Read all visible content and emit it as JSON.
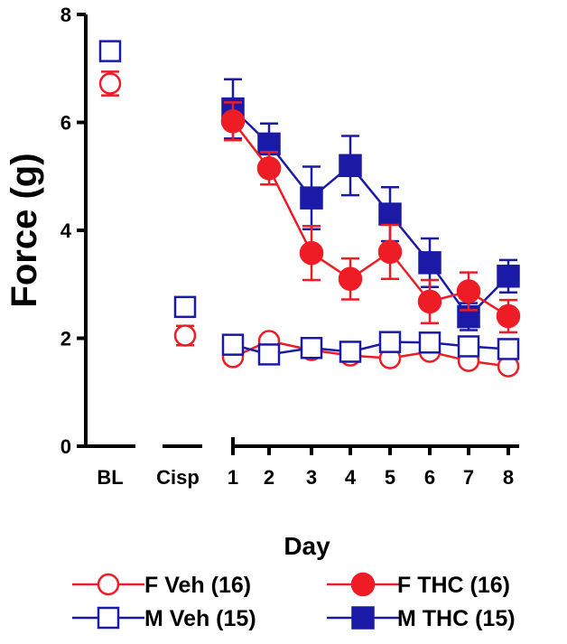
{
  "chart_data": {
    "type": "scatter",
    "ylabel": "Force (g)",
    "xlabel": "Day",
    "ylim": [
      0,
      8
    ],
    "yticks": [
      0,
      2,
      4,
      6,
      8
    ],
    "x_categories": [
      "BL",
      "Cisp",
      "1",
      "2",
      "3",
      "4",
      "5",
      "6",
      "7",
      "8"
    ],
    "colors": {
      "female": "#ee1c25",
      "male": "#1a1aa6"
    },
    "series": [
      {
        "name": "F Veh (16)",
        "color": "#ee1c25",
        "marker": "circle-open",
        "points": [
          {
            "x": "BL",
            "y": 6.72,
            "err": 0.22
          },
          {
            "x": "Cisp",
            "y": 2.05,
            "err": 0.18
          },
          {
            "x": "1",
            "y": 1.65,
            "err": 0.08
          },
          {
            "x": "2",
            "y": 1.95,
            "err": 0.08
          },
          {
            "x": "3",
            "y": 1.78,
            "err": 0.08
          },
          {
            "x": "4",
            "y": 1.68,
            "err": 0.08
          },
          {
            "x": "5",
            "y": 1.63,
            "err": 0.08
          },
          {
            "x": "6",
            "y": 1.75,
            "err": 0.08
          },
          {
            "x": "7",
            "y": 1.58,
            "err": 0.08
          },
          {
            "x": "8",
            "y": 1.48,
            "err": 0.08
          }
        ]
      },
      {
        "name": "F THC (16)",
        "color": "#ee1c25",
        "marker": "circle-filled",
        "points": [
          {
            "x": "1",
            "y": 6.02,
            "err": 0.35
          },
          {
            "x": "2",
            "y": 5.15,
            "err": 0.3
          },
          {
            "x": "3",
            "y": 3.58,
            "err": 0.5
          },
          {
            "x": "4",
            "y": 3.1,
            "err": 0.38
          },
          {
            "x": "5",
            "y": 3.6,
            "err": 0.5
          },
          {
            "x": "6",
            "y": 2.68,
            "err": 0.4
          },
          {
            "x": "7",
            "y": 2.87,
            "err": 0.35
          },
          {
            "x": "8",
            "y": 2.41,
            "err": 0.3
          }
        ]
      },
      {
        "name": "M Veh (15)",
        "color": "#1a1aa6",
        "marker": "square-open",
        "points": [
          {
            "x": "BL",
            "y": 7.32,
            "err": 0.1
          },
          {
            "x": "Cisp",
            "y": 2.58,
            "err": 0.1
          },
          {
            "x": "1",
            "y": 1.88,
            "err": 0.06
          },
          {
            "x": "2",
            "y": 1.7,
            "err": 0.06
          },
          {
            "x": "3",
            "y": 1.82,
            "err": 0.06
          },
          {
            "x": "4",
            "y": 1.75,
            "err": 0.06
          },
          {
            "x": "5",
            "y": 1.93,
            "err": 0.06
          },
          {
            "x": "6",
            "y": 1.92,
            "err": 0.06
          },
          {
            "x": "7",
            "y": 1.85,
            "err": 0.06
          },
          {
            "x": "8",
            "y": 1.8,
            "err": 0.06
          }
        ]
      },
      {
        "name": "M THC (15)",
        "color": "#1a1aa6",
        "marker": "square-filled",
        "points": [
          {
            "x": "1",
            "y": 6.25,
            "err": 0.55
          },
          {
            "x": "2",
            "y": 5.6,
            "err": 0.38
          },
          {
            "x": "3",
            "y": 4.6,
            "err": 0.58
          },
          {
            "x": "4",
            "y": 5.2,
            "err": 0.55
          },
          {
            "x": "5",
            "y": 4.3,
            "err": 0.5
          },
          {
            "x": "6",
            "y": 3.4,
            "err": 0.45
          },
          {
            "x": "7",
            "y": 2.4,
            "err": 0.25
          },
          {
            "x": "8",
            "y": 3.15,
            "err": 0.3
          }
        ]
      }
    ],
    "legend": [
      "F Veh (16)",
      "F THC (16)",
      "M Veh (15)",
      "M THC (15)"
    ]
  }
}
